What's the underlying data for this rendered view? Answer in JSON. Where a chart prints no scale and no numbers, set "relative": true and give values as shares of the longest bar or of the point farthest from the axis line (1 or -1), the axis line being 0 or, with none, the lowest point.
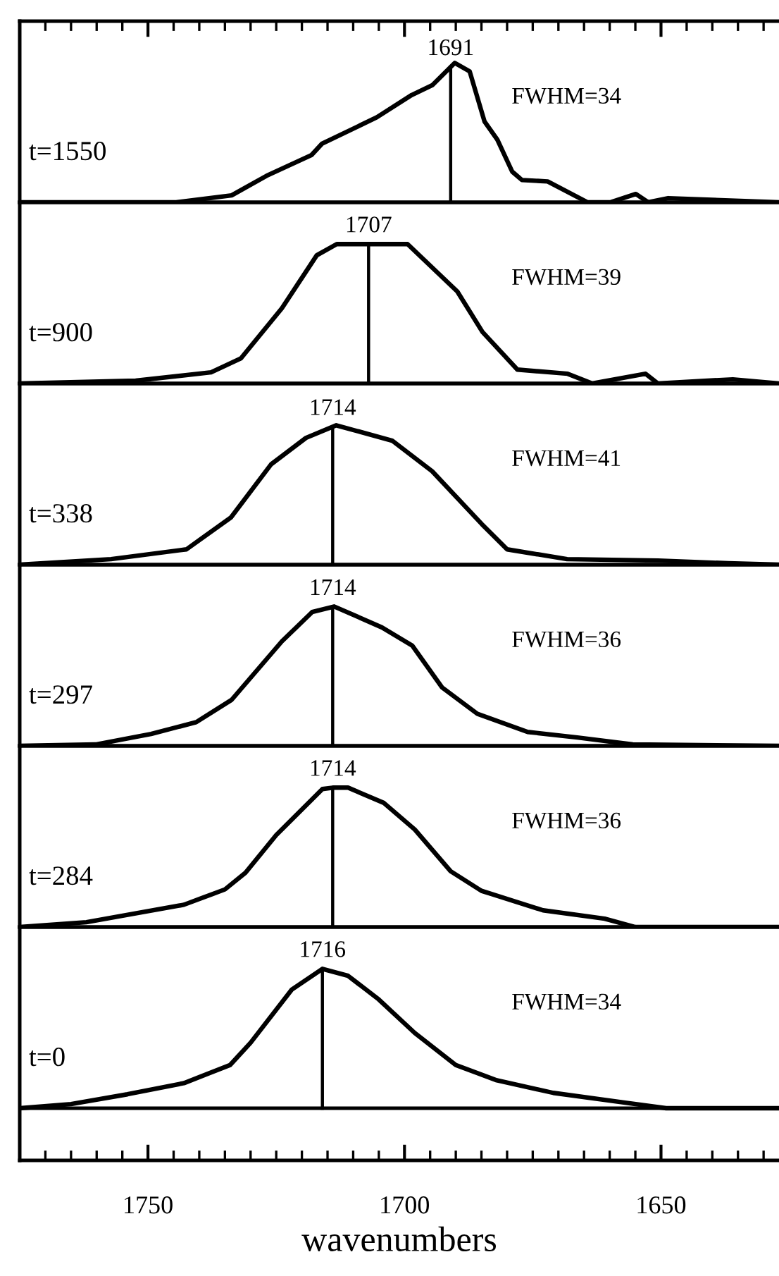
{
  "chart_data": [
    {
      "type": "line",
      "relative": true,
      "title": "t=1550",
      "annotations": [
        "FWHM=34"
      ],
      "xlim": [
        1775,
        1627
      ],
      "tick_labels": false,
      "x": [
        1775,
        1744.5,
        1733.7,
        1726.9,
        1718.1,
        1716.1,
        1705.4,
        1698.6,
        1694.6,
        1690.2,
        1687.3,
        1684.4,
        1681.9,
        1679,
        1677.1,
        1672.1,
        1664.3,
        1659.9,
        1654.9,
        1652.5,
        1648.6,
        1627
      ],
      "series": [
        {
          "color": "#000000",
          "values": [
            0,
            0,
            0.05,
            0.19,
            0.34,
            0.42,
            0.61,
            0.77,
            0.84,
            1,
            0.94,
            0.58,
            0.45,
            0.22,
            0.16,
            0.15,
            0,
            0,
            0.06,
            0,
            0.03,
            0
          ]
        }
      ],
      "ref_lines": [
        {
          "axis": "x",
          "value": 1691,
          "label": "1691"
        }
      ]
    },
    {
      "type": "line",
      "relative": true,
      "title": "t=900",
      "annotations": [
        "FWHM=39"
      ],
      "xlim": [
        1775,
        1627
      ],
      "tick_labels": false,
      "x": [
        1775,
        1752.4,
        1737.7,
        1731.9,
        1723.9,
        1717.1,
        1713.2,
        1699.4,
        1689.7,
        1684.8,
        1678,
        1668.2,
        1663.4,
        1653,
        1650.6,
        1636,
        1627
      ],
      "series": [
        {
          "color": "#000000",
          "values": [
            0,
            0.02,
            0.08,
            0.18,
            0.54,
            0.92,
            1,
            1,
            0.66,
            0.37,
            0.1,
            0.07,
            0,
            0.07,
            0,
            0.03,
            0
          ]
        }
      ],
      "ref_lines": [
        {
          "axis": "x",
          "value": 1707,
          "label": "1707"
        }
      ]
    },
    {
      "type": "line",
      "relative": true,
      "title": "t=338",
      "annotations": [
        "FWHM=41"
      ],
      "xlim": [
        1775,
        1627
      ],
      "tick_labels": false,
      "x": [
        1775,
        1757.2,
        1742.5,
        1733.8,
        1726,
        1719.2,
        1713.3,
        1702.4,
        1694.6,
        1684.9,
        1680,
        1668.3,
        1650.6,
        1636.9,
        1627
      ],
      "series": [
        {
          "color": "#000000",
          "values": [
            0,
            0.04,
            0.11,
            0.34,
            0.72,
            0.91,
            1,
            0.89,
            0.67,
            0.29,
            0.11,
            0.04,
            0.03,
            0.01,
            0
          ]
        }
      ],
      "ref_lines": [
        {
          "axis": "x",
          "value": 1714,
          "label": "1714"
        }
      ]
    },
    {
      "type": "line",
      "relative": true,
      "title": "t=297",
      "annotations": [
        "FWHM=36"
      ],
      "xlim": [
        1775,
        1627
      ],
      "tick_labels": false,
      "x": [
        1775,
        1760.2,
        1749.4,
        1740.6,
        1733.7,
        1723.9,
        1718,
        1713.7,
        1704.4,
        1698.5,
        1692.7,
        1685.8,
        1676,
        1666.3,
        1655.5,
        1627
      ],
      "series": [
        {
          "color": "#000000",
          "values": [
            0,
            0.01,
            0.085,
            0.17,
            0.33,
            0.75,
            0.96,
            1,
            0.85,
            0.72,
            0.42,
            0.23,
            0.1,
            0.06,
            0.01,
            0
          ]
        }
      ],
      "ref_lines": [
        {
          "axis": "x",
          "value": 1714,
          "label": "1714"
        }
      ]
    },
    {
      "type": "line",
      "relative": true,
      "title": "t=284",
      "annotations": [
        "FWHM=36"
      ],
      "xlim": [
        1775,
        1627
      ],
      "tick_labels": false,
      "x": [
        1775,
        1762,
        1743,
        1735,
        1731,
        1725,
        1716,
        1714,
        1711,
        1704,
        1698,
        1691,
        1685,
        1673,
        1661,
        1655,
        1627
      ],
      "series": [
        {
          "color": "#000000",
          "values": [
            0,
            0.035,
            0.16,
            0.27,
            0.39,
            0.66,
            0.99,
            1,
            1,
            0.89,
            0.7,
            0.4,
            0.26,
            0.12,
            0.06,
            0,
            0
          ]
        }
      ],
      "ref_lines": [
        {
          "axis": "x",
          "value": 1714,
          "label": "1714"
        }
      ]
    },
    {
      "type": "line",
      "relative": true,
      "title": "t=0",
      "annotations": [
        "FWHM=34"
      ],
      "xlabel": "wavenumbers",
      "xlim": [
        1775,
        1627
      ],
      "tick_labels": "x",
      "xticks": [
        1750,
        1700,
        1650
      ],
      "x": [
        1775,
        1765,
        1754,
        1743,
        1734,
        1730,
        1722,
        1716,
        1711,
        1705,
        1698,
        1690,
        1682,
        1671,
        1657,
        1649,
        1627
      ],
      "series": [
        {
          "color": "#000000",
          "values": [
            0,
            0.03,
            0.1,
            0.18,
            0.31,
            0.47,
            0.85,
            1,
            0.95,
            0.78,
            0.54,
            0.31,
            0.2,
            0.11,
            0.04,
            0,
            0
          ]
        }
      ],
      "ref_lines": [
        {
          "axis": "x",
          "value": 1716,
          "label": "1716"
        }
      ]
    }
  ]
}
